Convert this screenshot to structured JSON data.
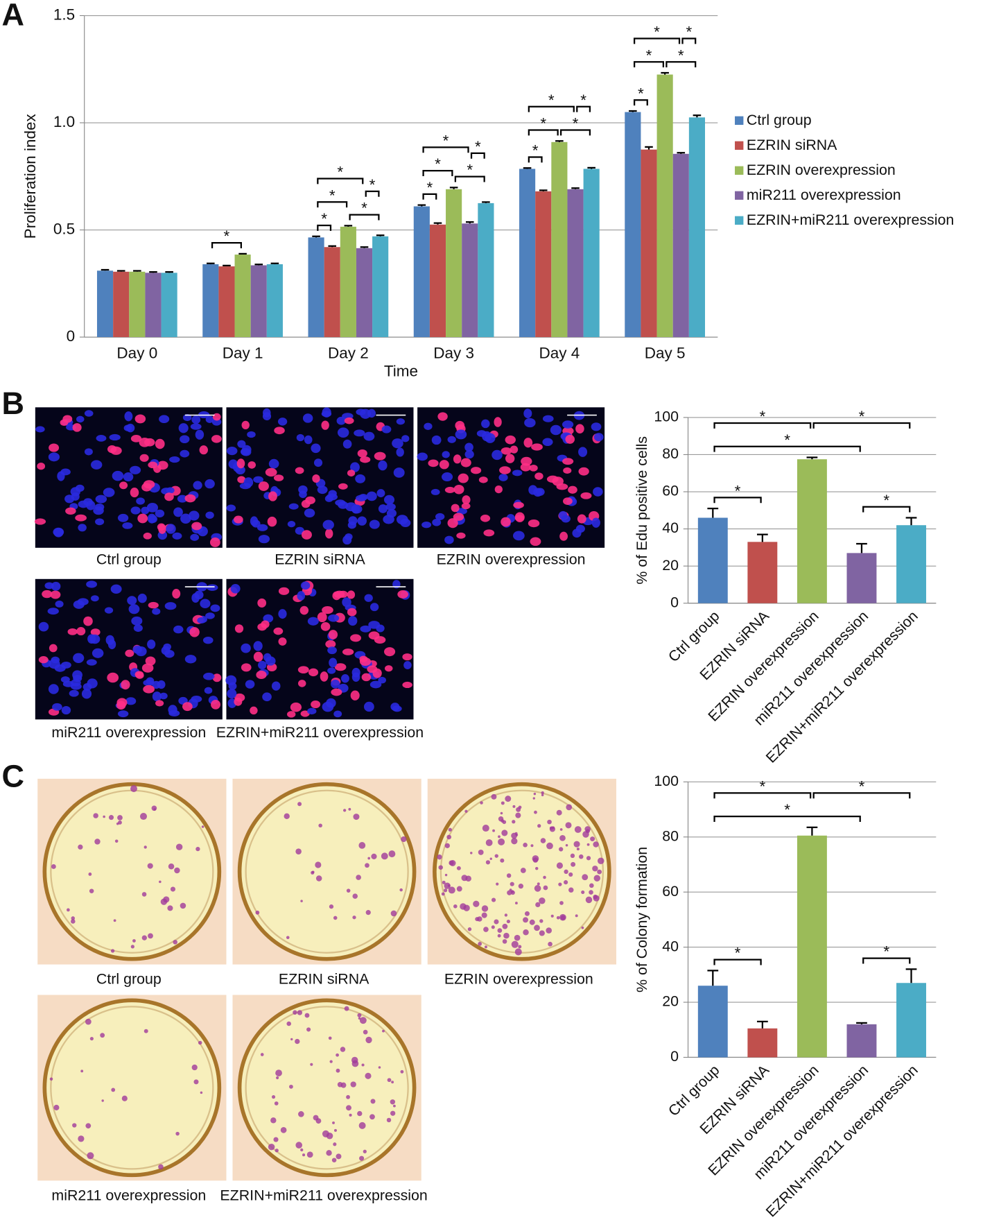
{
  "panel_labels": [
    "A",
    "B",
    "C"
  ],
  "micrographs": [
    "Ctrl group",
    "EZRIN siRNA",
    "EZRIN overexpression",
    "miR211 overexpression",
    "EZRIN+miR211 overexpression"
  ],
  "colony_images": [
    "Ctrl group",
    "EZRIN siRNA",
    "EZRIN overexpression",
    "miR211 overexpression",
    "EZRIN+miR211 overexpression"
  ],
  "chart_data": [
    {
      "type": "bar",
      "x_label": "Time",
      "y_label": "Proliferation index",
      "categories": [
        "Day 0",
        "Day 1",
        "Day 2",
        "Day 3",
        "Day 4",
        "Day 5"
      ],
      "series": [
        {
          "name": "Ctrl group",
          "color": "#4f81bd",
          "values": [
            0.31,
            0.34,
            0.465,
            0.61,
            0.785,
            1.05
          ],
          "errors": [
            0.004,
            0.004,
            0.005,
            0.006,
            0.004,
            0.005
          ]
        },
        {
          "name": "EZRIN siRNA",
          "color": "#c0504d",
          "values": [
            0.305,
            0.33,
            0.42,
            0.525,
            0.68,
            0.875
          ],
          "errors": [
            0.004,
            0.004,
            0.005,
            0.007,
            0.005,
            0.012
          ]
        },
        {
          "name": "EZRIN overexpression",
          "color": "#9bbb59",
          "values": [
            0.305,
            0.385,
            0.515,
            0.69,
            0.91,
            1.225
          ],
          "errors": [
            0.004,
            0.004,
            0.005,
            0.008,
            0.005,
            0.008
          ]
        },
        {
          "name": "miR211 overexpression",
          "color": "#8064a2",
          "values": [
            0.3,
            0.335,
            0.415,
            0.53,
            0.69,
            0.855
          ],
          "errors": [
            0.004,
            0.004,
            0.005,
            0.007,
            0.005,
            0.005
          ]
        },
        {
          "name": "EZRIN+miR211 overexpression",
          "color": "#4bacc6",
          "values": [
            0.3,
            0.34,
            0.47,
            0.625,
            0.785,
            1.025
          ],
          "errors": [
            0.004,
            0.004,
            0.005,
            0.005,
            0.005,
            0.01
          ]
        }
      ],
      "ylim": [
        0,
        1.5
      ],
      "yticks": [
        0,
        0.5,
        {
          "value": 1,
          "label": "1.0"
        },
        1.5
      ],
      "grid": true,
      "legend": "right",
      "significance": {
        "label": "*",
        "pairs": [
          {
            "category": 1,
            "bars": [
              0,
              2
            ]
          },
          {
            "category": 2,
            "bars": [
              0,
              1
            ]
          },
          {
            "category": 2,
            "bars": [
              0,
              2
            ]
          },
          {
            "category": 2,
            "bars": [
              2,
              4
            ]
          },
          {
            "category": 2,
            "bars": [
              0,
              3
            ]
          },
          {
            "category": 2,
            "bars": [
              3,
              4
            ]
          },
          {
            "category": 3,
            "bars": [
              0,
              1
            ]
          },
          {
            "category": 3,
            "bars": [
              0,
              2
            ]
          },
          {
            "category": 3,
            "bars": [
              2,
              4
            ]
          },
          {
            "category": 3,
            "bars": [
              0,
              3
            ]
          },
          {
            "category": 3,
            "bars": [
              3,
              4
            ]
          },
          {
            "category": 4,
            "bars": [
              0,
              1
            ]
          },
          {
            "category": 4,
            "bars": [
              0,
              2
            ]
          },
          {
            "category": 4,
            "bars": [
              2,
              4
            ]
          },
          {
            "category": 4,
            "bars": [
              0,
              3
            ]
          },
          {
            "category": 4,
            "bars": [
              3,
              4
            ]
          },
          {
            "category": 5,
            "bars": [
              0,
              1
            ]
          },
          {
            "category": 5,
            "bars": [
              0,
              2
            ]
          },
          {
            "category": 5,
            "bars": [
              2,
              4
            ]
          },
          {
            "category": 5,
            "bars": [
              0,
              3
            ]
          },
          {
            "category": 5,
            "bars": [
              3,
              4
            ]
          }
        ]
      }
    },
    {
      "type": "bar",
      "y_label": "% of Edu positive cells",
      "categories": [
        "Ctrl group",
        "EZRIN siRNA",
        "EZRIN overexpression",
        "miR211 overexpression",
        "EZRIN+miR211 overexpression"
      ],
      "values": [
        46,
        33,
        77.5,
        27,
        42
      ],
      "errors": [
        5,
        4,
        1,
        5,
        4
      ],
      "colors": [
        "#4f81bd",
        "#c0504d",
        "#9bbb59",
        "#8064a2",
        "#4bacc6"
      ],
      "ylim": [
        0,
        100
      ],
      "yticks": [
        0,
        20,
        40,
        60,
        80,
        100
      ],
      "grid": true,
      "label_rotation": -45,
      "significance": {
        "label": "*",
        "pairs": [
          {
            "bars": [
              0,
              1
            ]
          },
          {
            "bars": [
              0,
              3
            ]
          },
          {
            "bars": [
              3,
              4
            ]
          },
          {
            "bars": [
              0,
              2
            ]
          },
          {
            "bars": [
              2,
              4
            ]
          }
        ]
      }
    },
    {
      "type": "bar",
      "y_label": "% of Colony formation",
      "categories": [
        "Ctrl group",
        "EZRIN siRNA",
        "EZRIN overexpression",
        "miR211 overexpression",
        "EZRIN+miR211 overexpression"
      ],
      "values": [
        26,
        10.5,
        80.5,
        12,
        27
      ],
      "errors": [
        5.5,
        2.5,
        3,
        0.5,
        5
      ],
      "colors": [
        "#4f81bd",
        "#c0504d",
        "#9bbb59",
        "#8064a2",
        "#4bacc6"
      ],
      "ylim": [
        0,
        100
      ],
      "yticks": [
        0,
        20,
        40,
        60,
        80,
        100
      ],
      "grid": true,
      "label_rotation": -45,
      "significance": {
        "label": "*",
        "pairs": [
          {
            "bars": [
              0,
              1
            ]
          },
          {
            "bars": [
              0,
              3
            ]
          },
          {
            "bars": [
              3,
              4
            ]
          },
          {
            "bars": [
              0,
              2
            ]
          },
          {
            "bars": [
              2,
              4
            ]
          }
        ]
      }
    }
  ]
}
